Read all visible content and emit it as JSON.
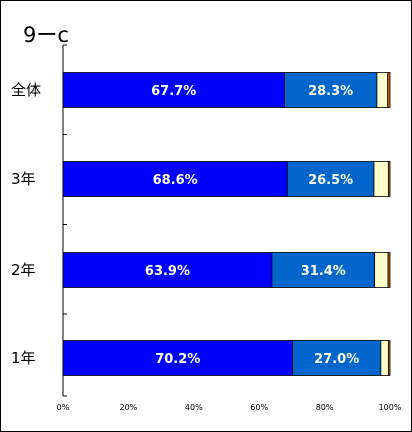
{
  "chart_data": {
    "type": "bar",
    "orientation": "horizontal",
    "stacked": true,
    "title": "9ーc",
    "categories": [
      "全体",
      "3年",
      "2年",
      "1年"
    ],
    "series": [
      {
        "values": [
          67.7,
          68.6,
          63.9,
          70.2
        ],
        "color": "#0000FF",
        "labels": [
          "67.7%",
          "68.6%",
          "63.9%",
          "70.2%"
        ]
      },
      {
        "values": [
          28.3,
          26.5,
          31.4,
          27.0
        ],
        "color": "#0066CC",
        "labels": [
          "28.3%",
          "26.5%",
          "31.4%",
          "27.0%"
        ]
      },
      {
        "values": [
          3.3,
          4.4,
          4.1,
          2.3
        ],
        "color": "#FFFFCC"
      },
      {
        "values": [
          0.7,
          0.5,
          0.6,
          0.5
        ],
        "color": "#CC6600"
      }
    ],
    "xlim": [
      0,
      100
    ],
    "xticks": [
      0,
      20,
      40,
      60,
      80,
      100
    ],
    "xtick_labels": [
      "0%",
      "20%",
      "40%",
      "60%",
      "80%",
      "100%"
    ],
    "grid": false,
    "legend": "none"
  }
}
